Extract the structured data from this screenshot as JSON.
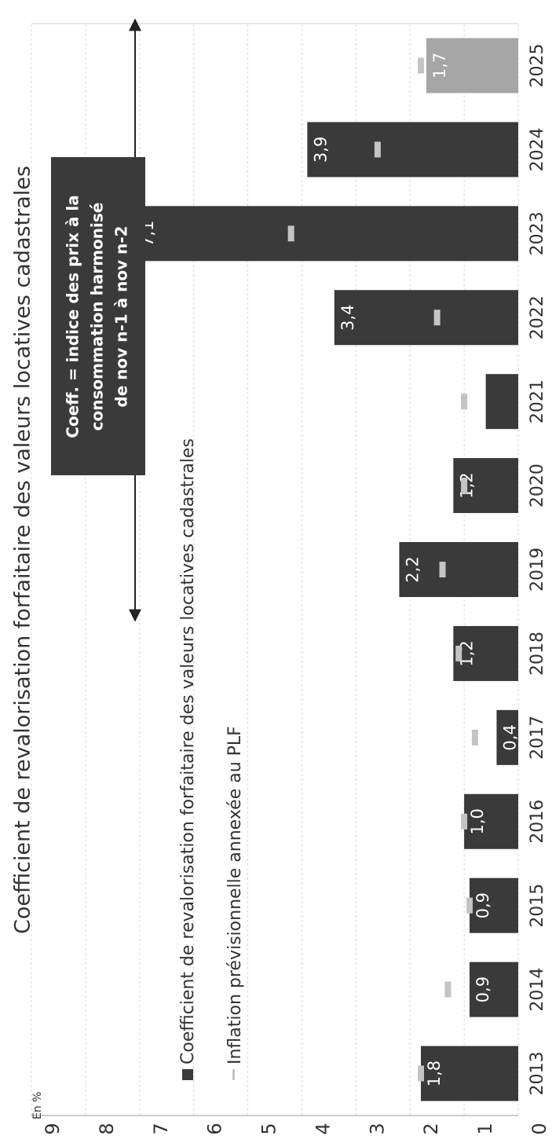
{
  "chart_data": {
    "type": "bar",
    "title": "Coefficient de revalorisation forfaitaire des valeurs locatives cadastrales",
    "unit_label": "En %",
    "categories": [
      "2013",
      "2014",
      "2015",
      "2016",
      "2017",
      "2018",
      "2019",
      "2020",
      "2021",
      "2022",
      "2023",
      "2024",
      "2025"
    ],
    "series": [
      {
        "name": "Coefficient de revalorisation forfaitaire des valeurs locatives cadastrales",
        "color": "#3a3a3a",
        "colors": [
          "#3a3a3a",
          "#3a3a3a",
          "#3a3a3a",
          "#3a3a3a",
          "#3a3a3a",
          "#3a3a3a",
          "#3a3a3a",
          "#3a3a3a",
          "#3a3a3a",
          "#3a3a3a",
          "#3a3a3a",
          "#3a3a3a",
          "#a6a6a6"
        ],
        "values": [
          1.8,
          0.9,
          0.9,
          1.0,
          0.4,
          1.2,
          2.2,
          1.2,
          0.6,
          3.4,
          7.1,
          3.9,
          1.7
        ],
        "value_labels": [
          "1,8",
          "0,9",
          "0,9",
          "1,0",
          "0,4",
          "1,2",
          "2,2",
          "1,2",
          null,
          "3,4",
          "7,1",
          "3,9",
          "1,7"
        ]
      },
      {
        "name": "Inflation prévisionnelle annexée au PLF",
        "color": "#c4c4c4",
        "values": [
          1.8,
          1.3,
          0.9,
          1.0,
          0.8,
          1.1,
          1.4,
          1.0,
          1.0,
          1.5,
          4.2,
          2.6,
          1.8
        ]
      }
    ],
    "ylim": [
      0,
      9
    ],
    "yticks": [
      0,
      1,
      2,
      3,
      4,
      5,
      6,
      7,
      8,
      9
    ],
    "grid": true,
    "annotation": {
      "lines": [
        "Coeff. = indice des prix à la",
        "consommation harmonisé",
        "de nov n-1 à nov n-2"
      ]
    }
  }
}
